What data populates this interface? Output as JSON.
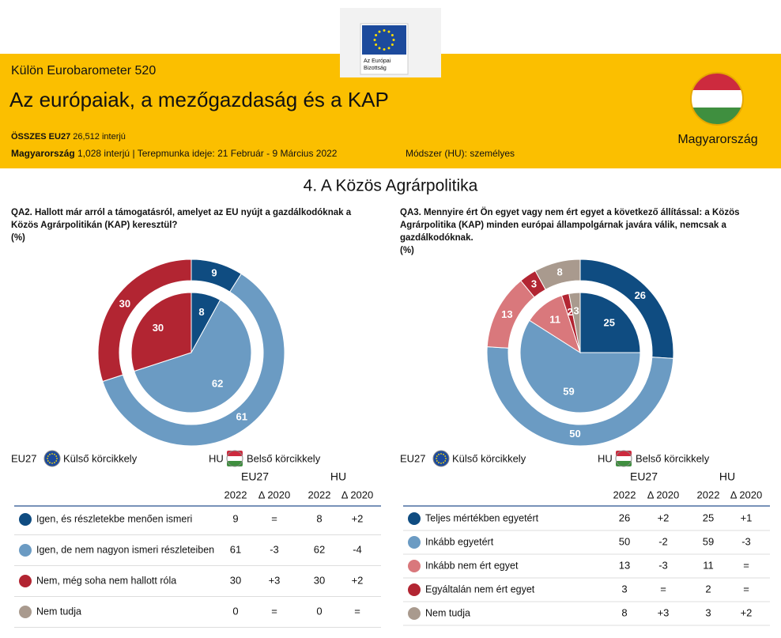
{
  "header": {
    "logo_text": [
      "Az Európai",
      "Bizottság"
    ],
    "series": "Külön Eurobarometer 520",
    "title": "Az európaiak, a mezőgazdaság és a KAP",
    "eu_label": "ÖSSZES EU27",
    "eu_interviews": "26,512 interjú",
    "country_label": "Magyarország",
    "country_interviews": "1,028 interjú",
    "separator": "|",
    "fieldwork": "Terepmunka ideje: 21 Február - 9 Március 2022",
    "method": "Módszer (HU): személyes",
    "country": "Magyarország"
  },
  "section_title": "4. A Közös Agrárpolitika",
  "table_headers": {
    "eu": "EU27",
    "hu": "HU",
    "year": "2022",
    "delta": "Δ 2020"
  },
  "chart_data": [
    {
      "type": "donut",
      "question": [
        "QA2. Hallott már arról a támogatásról, amelyet az EU nyújt a gazdálkodóknak a",
        "Közös Agrárpolitikán (KAP) keresztül?",
        "(%)"
      ],
      "categories": [
        "Igen, és részletekbe menően ismeri",
        "Igen, de nem nagyon ismeri részleteiben",
        "Nem, még soha nem hallott róla",
        "Nem tudja"
      ],
      "colors": [
        "#0f4c81",
        "#6b9bc3",
        "#b22532",
        "#a99a8e"
      ],
      "series": [
        {
          "name": "EU27",
          "ring": "Külső körcikkely",
          "values": [
            9,
            61,
            30,
            0
          ],
          "deltas": [
            "=",
            "-3",
            "+3",
            "="
          ]
        },
        {
          "name": "HU",
          "ring": "Belső körcikkely",
          "values": [
            8,
            62,
            30,
            0
          ],
          "deltas": [
            "+2",
            "-4",
            "+2",
            "="
          ]
        }
      ]
    },
    {
      "type": "donut",
      "question": [
        "QA3. Mennyire ért Ön egyet vagy nem ért egyet a következő állítással: a Közös",
        "Agrárpolitika (KAP) minden európai állampolgárnak javára válik, nemcsak a",
        "gazdálkodóknak.",
        "(%)"
      ],
      "categories": [
        "Teljes mértékben egyetért",
        "Inkább egyetért",
        "Inkább nem ért egyet",
        "Egyáltalán nem ért egyet",
        "Nem tudja"
      ],
      "colors": [
        "#0f4c81",
        "#6b9bc3",
        "#d9787c",
        "#b22532",
        "#a99a8e"
      ],
      "series": [
        {
          "name": "EU27",
          "ring": "Külső körcikkely",
          "values": [
            26,
            50,
            13,
            3,
            8
          ],
          "deltas": [
            "+2",
            "-2",
            "-3",
            "=",
            "+3"
          ]
        },
        {
          "name": "HU",
          "ring": "Belső körcikkely",
          "values": [
            25,
            59,
            11,
            2,
            3
          ],
          "deltas": [
            "+1",
            "-3",
            "=",
            "=",
            "+2"
          ]
        }
      ]
    }
  ]
}
